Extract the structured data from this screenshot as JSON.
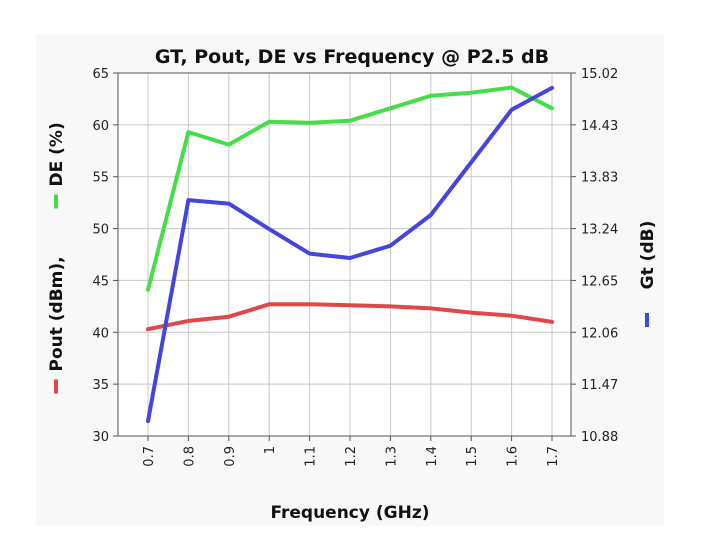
{
  "chart_data": {
    "type": "line",
    "title": "GT, Pout, DE vs Frequency @ P2.5 dB",
    "xlabel": "Frequency (GHz)",
    "ylabel_left_parts": [
      {
        "text": "Pout (dBm),",
        "series": "Pout"
      },
      {
        "text": "DE (%)",
        "series": "DE"
      }
    ],
    "ylabel_right": "Gt (dB)",
    "x": [
      0.7,
      0.8,
      0.9,
      1.0,
      1.1,
      1.2,
      1.3,
      1.4,
      1.5,
      1.6,
      1.7
    ],
    "x_tick_labels": [
      "0.7",
      "0.8",
      "0.9",
      "1",
      "1.1",
      "1.2",
      "1.3",
      "1.4",
      "1.5",
      "1.6",
      "1.7"
    ],
    "y_left_ticks": [
      "30",
      "35",
      "40",
      "45",
      "50",
      "55",
      "60",
      "65"
    ],
    "y_left_range": [
      30,
      65
    ],
    "y_right_ticks": [
      "10.88",
      "11.47",
      "12.06",
      "12.65",
      "13.24",
      "13.83",
      "14.43",
      "15.02"
    ],
    "y_right_range": [
      10.88,
      15.02
    ],
    "grid": true,
    "series": [
      {
        "name": "Pout",
        "axis": "left",
        "color": "#e04848",
        "values": [
          40.3,
          41.1,
          41.5,
          42.7,
          42.7,
          42.6,
          42.5,
          42.3,
          41.9,
          41.6,
          41.0
        ]
      },
      {
        "name": "DE",
        "axis": "left",
        "color": "#46de46",
        "values": [
          44.1,
          59.3,
          58.1,
          60.3,
          60.2,
          60.4,
          61.6,
          62.8,
          63.1,
          63.6,
          61.6
        ]
      },
      {
        "name": "Gt",
        "axis": "right",
        "color": "#4545dd",
        "values": [
          11.05,
          13.57,
          13.53,
          13.24,
          12.96,
          12.91,
          13.05,
          13.4,
          14.0,
          14.6,
          14.85
        ]
      }
    ]
  }
}
